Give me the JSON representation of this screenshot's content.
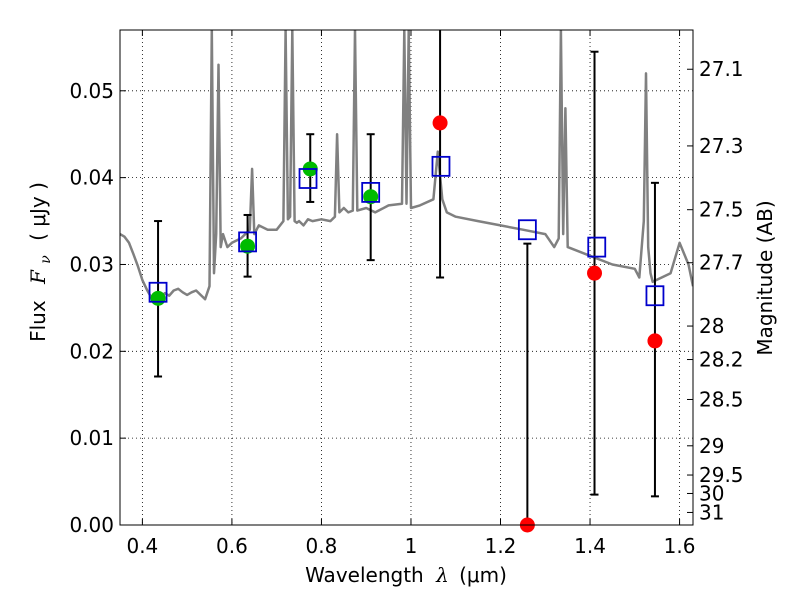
{
  "chart_data": {
    "type": "scatter",
    "title": "",
    "xlabel_prefix": "Wavelength",
    "xlabel_symbol": "λ",
    "xlabel_unit": "(μm)",
    "ylabel_text": "Flux",
    "ylabel_symbol": "F",
    "ylabel_subscript": "ν",
    "ylabel_unit": "(  μJy  )",
    "y2label": "Magnitude (AB)",
    "xlim": [
      0.35,
      1.63
    ],
    "ylim": [
      0.0,
      0.057
    ],
    "grid": true,
    "x_ticks": [
      0.4,
      0.6,
      0.8,
      1.0,
      1.2,
      1.4,
      1.6
    ],
    "x_tick_labels": [
      "0.4",
      "0.6",
      "0.8",
      "1",
      "1.2",
      "1.4",
      "1.6"
    ],
    "y_ticks": [
      0.0,
      0.01,
      0.02,
      0.03,
      0.04,
      0.05
    ],
    "y_tick_labels": [
      "0.00",
      "0.01",
      "0.02",
      "0.03",
      "0.04",
      "0.05"
    ],
    "y2_ticks": [
      27.1,
      27.3,
      27.5,
      27.7,
      28,
      28.2,
      28.5,
      29,
      29.5,
      30,
      31
    ],
    "y2_tick_labels": [
      "27.1",
      "27.3",
      "27.5",
      "27.7",
      "28",
      "28.2",
      "28.5",
      "29",
      "29.5",
      "30",
      "31"
    ],
    "colors": {
      "spectrum": "#808080",
      "model": "#0000cc",
      "detection": "#00bb00",
      "non_detection": "#ff0000",
      "errorbar": "#000000"
    },
    "series": [
      {
        "type": "errorbar",
        "x": [
          0.435,
          0.635,
          0.775,
          0.91,
          1.065,
          1.26,
          1.41,
          1.545
        ],
        "low": [
          0.0171,
          0.0286,
          0.0372,
          0.0305,
          0.0285,
          0.0,
          0.0035,
          0.0033
        ],
        "high": [
          0.035,
          0.0357,
          0.045,
          0.045,
          0.0575,
          0.0324,
          0.0545,
          0.0394
        ]
      },
      {
        "type": "marker-green",
        "x": [
          0.435,
          0.635,
          0.775,
          0.91
        ],
        "y": [
          0.0261,
          0.0321,
          0.041,
          0.0378
        ]
      },
      {
        "type": "marker-red",
        "x": [
          1.065,
          1.26,
          1.41,
          1.545
        ],
        "y": [
          0.0463,
          0.0,
          0.029,
          0.0212
        ]
      },
      {
        "type": "model-squares",
        "x": [
          0.435,
          0.635,
          0.77,
          0.91,
          1.067,
          1.26,
          1.415,
          1.545
        ],
        "y": [
          0.0268,
          0.0326,
          0.0399,
          0.0383,
          0.0413,
          0.034,
          0.032,
          0.0264
        ]
      },
      {
        "type": "spectrum-line",
        "x": [
          0.35,
          0.36,
          0.37,
          0.38,
          0.39,
          0.4,
          0.41,
          0.42,
          0.43,
          0.44,
          0.45,
          0.46,
          0.47,
          0.48,
          0.49,
          0.5,
          0.51,
          0.52,
          0.53,
          0.54,
          0.55,
          0.555,
          0.56,
          0.565,
          0.57,
          0.575,
          0.58,
          0.59,
          0.6,
          0.62,
          0.64,
          0.645,
          0.65,
          0.66,
          0.68,
          0.7,
          0.715,
          0.72,
          0.725,
          0.73,
          0.735,
          0.74,
          0.745,
          0.75,
          0.76,
          0.77,
          0.78,
          0.8,
          0.82,
          0.83,
          0.835,
          0.84,
          0.85,
          0.86,
          0.87,
          0.875,
          0.88,
          0.9,
          0.92,
          0.95,
          0.98,
          0.985,
          0.99,
          0.995,
          1.0,
          1.02,
          1.05,
          1.06,
          1.07,
          1.08,
          1.1,
          1.15,
          1.2,
          1.25,
          1.3,
          1.32,
          1.33,
          1.335,
          1.34,
          1.345,
          1.35,
          1.4,
          1.45,
          1.5,
          1.51,
          1.52,
          1.525,
          1.53,
          1.535,
          1.54,
          1.56,
          1.58,
          1.6,
          1.62,
          1.63
        ],
        "y": [
          0.0335,
          0.0332,
          0.0325,
          0.0312,
          0.0298,
          0.0282,
          0.0271,
          0.0262,
          0.0258,
          0.0262,
          0.0267,
          0.0264,
          0.027,
          0.0272,
          0.0268,
          0.0265,
          0.0268,
          0.027,
          0.0265,
          0.026,
          0.0275,
          0.057,
          0.029,
          0.0335,
          0.053,
          0.032,
          0.0335,
          0.032,
          0.0325,
          0.033,
          0.034,
          0.041,
          0.0335,
          0.0345,
          0.034,
          0.034,
          0.035,
          0.057,
          0.0352,
          0.0355,
          0.057,
          0.035,
          0.0348,
          0.035,
          0.0345,
          0.0352,
          0.035,
          0.0352,
          0.035,
          0.0355,
          0.045,
          0.036,
          0.0365,
          0.036,
          0.0362,
          0.057,
          0.0362,
          0.0365,
          0.036,
          0.0368,
          0.037,
          0.057,
          0.037,
          0.057,
          0.0365,
          0.0368,
          0.0375,
          0.043,
          0.0375,
          0.036,
          0.0355,
          0.035,
          0.0345,
          0.034,
          0.0335,
          0.032,
          0.033,
          0.057,
          0.0335,
          0.048,
          0.032,
          0.031,
          0.03,
          0.0295,
          0.0285,
          0.035,
          0.052,
          0.032,
          0.029,
          0.028,
          0.0285,
          0.029,
          0.0325,
          0.03,
          0.0275
        ]
      }
    ]
  }
}
